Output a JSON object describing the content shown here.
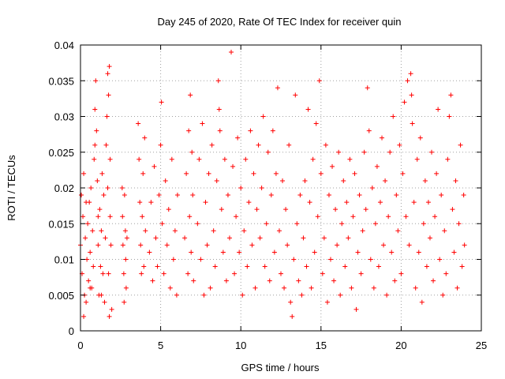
{
  "chart_data": {
    "type": "scatter",
    "title": "Day 245 of 2020, Rate Of TEC Index for receiver quin",
    "xlabel": "GPS time / hours",
    "ylabel": "ROTI / TECUs",
    "xlim": [
      0,
      25
    ],
    "ylim": [
      0,
      0.04
    ],
    "xticks": [
      0,
      5,
      10,
      15,
      20,
      25
    ],
    "xtick_labels": [
      "0",
      "5",
      "10",
      "15",
      "20",
      "25"
    ],
    "yticks": [
      0,
      0.005,
      0.01,
      0.015,
      0.02,
      0.025,
      0.03,
      0.035,
      0.04
    ],
    "ytick_labels": [
      "0",
      "0.005",
      "0.01",
      "0.015",
      "0.02",
      "0.025",
      "0.03",
      "0.035",
      "0.04"
    ],
    "grid": true,
    "marker": "plus",
    "color": "#ff0000",
    "series": [
      {
        "points": [
          [
            0.0,
            0.012
          ],
          [
            0.05,
            0.019
          ],
          [
            0.1,
            0.008
          ],
          [
            0.15,
            0.016
          ],
          [
            0.2,
            0.022
          ],
          [
            0.25,
            0.005
          ],
          [
            0.3,
            0.013
          ],
          [
            0.35,
            0.004
          ],
          [
            0.4,
            0.01
          ],
          [
            0.45,
            0.015
          ],
          [
            0.5,
            0.007
          ],
          [
            0.55,
            0.018
          ],
          [
            0.6,
            0.011
          ],
          [
            0.65,
            0.02
          ],
          [
            0.7,
            0.006
          ],
          [
            0.75,
            0.014
          ],
          [
            0.8,
            0.009
          ],
          [
            0.85,
            0.024
          ],
          [
            0.9,
            0.031
          ],
          [
            0.95,
            0.035
          ],
          [
            1.0,
            0.028
          ],
          [
            1.05,
            0.021
          ],
          [
            1.1,
            0.012
          ],
          [
            1.15,
            0.005
          ],
          [
            1.2,
            0.017
          ],
          [
            1.25,
            0.009
          ],
          [
            1.3,
            0.014
          ],
          [
            1.35,
            0.022
          ],
          [
            1.4,
            0.008
          ],
          [
            1.45,
            0.019
          ],
          [
            1.5,
            0.004
          ],
          [
            1.55,
            0.013
          ],
          [
            1.6,
            0.026
          ],
          [
            1.65,
            0.03
          ],
          [
            1.7,
            0.036
          ],
          [
            1.75,
            0.033
          ],
          [
            1.8,
            0.037
          ],
          [
            1.85,
            0.024
          ],
          [
            1.9,
            0.012
          ],
          [
            1.95,
            0.003
          ],
          [
            1.8,
            0.002
          ],
          [
            1.75,
            0.008
          ],
          [
            1.85,
            0.016
          ],
          [
            1.7,
            0.02
          ],
          [
            0.2,
            0.002
          ],
          [
            0.9,
            0.026
          ],
          [
            1.1,
            0.016
          ],
          [
            0.6,
            0.006
          ],
          [
            0.35,
            0.018
          ],
          [
            1.3,
            0.005
          ],
          [
            2.6,
            0.02
          ],
          [
            2.62,
            0.016
          ],
          [
            2.65,
            0.012
          ],
          [
            2.7,
            0.008
          ],
          [
            2.72,
            0.004
          ],
          [
            2.75,
            0.019
          ],
          [
            2.8,
            0.014
          ],
          [
            2.82,
            0.01
          ],
          [
            2.85,
            0.006
          ],
          [
            2.9,
            0.013
          ],
          [
            3.6,
            0.029
          ],
          [
            3.65,
            0.024
          ],
          [
            3.7,
            0.018
          ],
          [
            3.75,
            0.012
          ],
          [
            3.8,
            0.008
          ],
          [
            3.85,
            0.016
          ],
          [
            3.9,
            0.022
          ],
          [
            3.95,
            0.009
          ],
          [
            4.0,
            0.027
          ],
          [
            4.05,
            0.014
          ],
          [
            4.3,
            0.011
          ],
          [
            4.4,
            0.018
          ],
          [
            4.5,
            0.007
          ],
          [
            4.6,
            0.023
          ],
          [
            4.7,
            0.013
          ],
          [
            4.8,
            0.009
          ],
          [
            4.9,
            0.019
          ],
          [
            5.0,
            0.026
          ],
          [
            5.05,
            0.032
          ],
          [
            5.1,
            0.015
          ],
          [
            5.2,
            0.008
          ],
          [
            5.3,
            0.021
          ],
          [
            5.4,
            0.012
          ],
          [
            5.5,
            0.017
          ],
          [
            5.6,
            0.006
          ],
          [
            5.7,
            0.024
          ],
          [
            5.8,
            0.01
          ],
          [
            5.9,
            0.014
          ],
          [
            6.0,
            0.005
          ],
          [
            6.05,
            0.019
          ],
          [
            6.5,
            0.013
          ],
          [
            6.6,
            0.022
          ],
          [
            6.7,
            0.008
          ],
          [
            6.75,
            0.028
          ],
          [
            6.8,
            0.016
          ],
          [
            6.85,
            0.033
          ],
          [
            6.9,
            0.011
          ],
          [
            6.95,
            0.025
          ],
          [
            7.0,
            0.019
          ],
          [
            7.05,
            0.007
          ],
          [
            7.3,
            0.015
          ],
          [
            7.4,
            0.024
          ],
          [
            7.5,
            0.01
          ],
          [
            7.6,
            0.029
          ],
          [
            7.7,
            0.005
          ],
          [
            7.8,
            0.018
          ],
          [
            7.9,
            0.012
          ],
          [
            8.0,
            0.022
          ],
          [
            8.1,
            0.006
          ],
          [
            8.2,
            0.026
          ],
          [
            8.3,
            0.014
          ],
          [
            8.4,
            0.009
          ],
          [
            8.5,
            0.021
          ],
          [
            8.6,
            0.035
          ],
          [
            8.65,
            0.031
          ],
          [
            8.7,
            0.028
          ],
          [
            8.8,
            0.017
          ],
          [
            8.9,
            0.011
          ],
          [
            9.0,
            0.024
          ],
          [
            9.1,
            0.007
          ],
          [
            9.2,
            0.019
          ],
          [
            9.3,
            0.013
          ],
          [
            9.4,
            0.039
          ],
          [
            9.5,
            0.023
          ],
          [
            9.6,
            0.008
          ],
          [
            9.7,
            0.016
          ],
          [
            9.8,
            0.027
          ],
          [
            9.9,
            0.011
          ],
          [
            10.0,
            0.02
          ],
          [
            10.1,
            0.005
          ],
          [
            10.2,
            0.014
          ],
          [
            10.3,
            0.024
          ],
          [
            10.4,
            0.009
          ],
          [
            10.5,
            0.018
          ],
          [
            10.6,
            0.028
          ],
          [
            10.7,
            0.012
          ],
          [
            10.8,
            0.022
          ],
          [
            10.9,
            0.006
          ],
          [
            11.0,
            0.017
          ],
          [
            11.1,
            0.026
          ],
          [
            11.2,
            0.013
          ],
          [
            11.3,
            0.02
          ],
          [
            11.4,
            0.03
          ],
          [
            11.5,
            0.009
          ],
          [
            11.6,
            0.015
          ],
          [
            11.7,
            0.025
          ],
          [
            11.8,
            0.007
          ],
          [
            11.9,
            0.019
          ],
          [
            12.0,
            0.028
          ],
          [
            12.1,
            0.011
          ],
          [
            12.2,
            0.022
          ],
          [
            12.3,
            0.034
          ],
          [
            12.4,
            0.014
          ],
          [
            12.5,
            0.008
          ],
          [
            12.6,
            0.021
          ],
          [
            12.7,
            0.006
          ],
          [
            12.8,
            0.017
          ],
          [
            12.9,
            0.012
          ],
          [
            13.0,
            0.026
          ],
          [
            13.1,
            0.004
          ],
          [
            13.2,
            0.002
          ],
          [
            13.3,
            0.01
          ],
          [
            13.4,
            0.033
          ],
          [
            13.5,
            0.015
          ],
          [
            13.6,
            0.007
          ],
          [
            13.7,
            0.019
          ],
          [
            13.8,
            0.005
          ],
          [
            13.9,
            0.013
          ],
          [
            14.0,
            0.021
          ],
          [
            14.1,
            0.009
          ],
          [
            14.2,
            0.031
          ],
          [
            14.3,
            0.018
          ],
          [
            14.4,
            0.006
          ],
          [
            14.5,
            0.024
          ],
          [
            14.6,
            0.011
          ],
          [
            14.7,
            0.029
          ],
          [
            14.8,
            0.016
          ],
          [
            14.9,
            0.035
          ],
          [
            15.0,
            0.022
          ],
          [
            15.1,
            0.008
          ],
          [
            15.2,
            0.013
          ],
          [
            15.3,
            0.026
          ],
          [
            15.4,
            0.004
          ],
          [
            15.5,
            0.019
          ],
          [
            15.6,
            0.01
          ],
          [
            15.7,
            0.023
          ],
          [
            15.8,
            0.007
          ],
          [
            15.9,
            0.017
          ],
          [
            16.0,
            0.012
          ],
          [
            16.1,
            0.025
          ],
          [
            16.2,
            0.005
          ],
          [
            16.3,
            0.015
          ],
          [
            16.4,
            0.021
          ],
          [
            16.5,
            0.009
          ],
          [
            16.6,
            0.018
          ],
          [
            16.7,
            0.013
          ],
          [
            16.8,
            0.024
          ],
          [
            16.9,
            0.006
          ],
          [
            17.0,
            0.016
          ],
          [
            17.1,
            0.022
          ],
          [
            17.2,
            0.003
          ],
          [
            17.3,
            0.011
          ],
          [
            17.4,
            0.019
          ],
          [
            17.5,
            0.008
          ],
          [
            17.6,
            0.014
          ],
          [
            17.7,
            0.025
          ],
          [
            17.8,
            0.017
          ],
          [
            17.9,
            0.034
          ],
          [
            18.0,
            0.028
          ],
          [
            18.1,
            0.01
          ],
          [
            18.2,
            0.02
          ],
          [
            18.3,
            0.006
          ],
          [
            18.4,
            0.015
          ],
          [
            18.5,
            0.023
          ],
          [
            18.6,
            0.009
          ],
          [
            18.7,
            0.018
          ],
          [
            18.8,
            0.027
          ],
          [
            18.9,
            0.012
          ],
          [
            19.0,
            0.021
          ],
          [
            19.1,
            0.005
          ],
          [
            19.2,
            0.016
          ],
          [
            19.3,
            0.025
          ],
          [
            19.4,
            0.011
          ],
          [
            19.5,
            0.03
          ],
          [
            19.6,
            0.007
          ],
          [
            19.7,
            0.019
          ],
          [
            19.8,
            0.014
          ],
          [
            19.9,
            0.026
          ],
          [
            20.0,
            0.008
          ],
          [
            20.1,
            0.022
          ],
          [
            20.2,
            0.032
          ],
          [
            20.3,
            0.016
          ],
          [
            20.4,
            0.035
          ],
          [
            20.5,
            0.012
          ],
          [
            20.6,
            0.036
          ],
          [
            20.65,
            0.033
          ],
          [
            20.7,
            0.029
          ],
          [
            20.8,
            0.018
          ],
          [
            20.9,
            0.006
          ],
          [
            21.0,
            0.024
          ],
          [
            21.1,
            0.011
          ],
          [
            21.2,
            0.027
          ],
          [
            21.3,
            0.004
          ],
          [
            21.4,
            0.015
          ],
          [
            21.5,
            0.021
          ],
          [
            21.6,
            0.009
          ],
          [
            21.7,
            0.018
          ],
          [
            21.8,
            0.013
          ],
          [
            21.9,
            0.025
          ],
          [
            22.0,
            0.007
          ],
          [
            22.1,
            0.016
          ],
          [
            22.2,
            0.022
          ],
          [
            22.3,
            0.031
          ],
          [
            22.4,
            0.01
          ],
          [
            22.5,
            0.019
          ],
          [
            22.6,
            0.005
          ],
          [
            22.7,
            0.014
          ],
          [
            22.8,
            0.008
          ],
          [
            22.9,
            0.024
          ],
          [
            23.0,
            0.03
          ],
          [
            23.1,
            0.033
          ],
          [
            23.2,
            0.017
          ],
          [
            23.3,
            0.011
          ],
          [
            23.4,
            0.021
          ],
          [
            23.5,
            0.006
          ],
          [
            23.6,
            0.015
          ],
          [
            23.7,
            0.026
          ],
          [
            23.8,
            0.009
          ],
          [
            23.9,
            0.019
          ],
          [
            23.95,
            0.012
          ]
        ]
      }
    ]
  }
}
